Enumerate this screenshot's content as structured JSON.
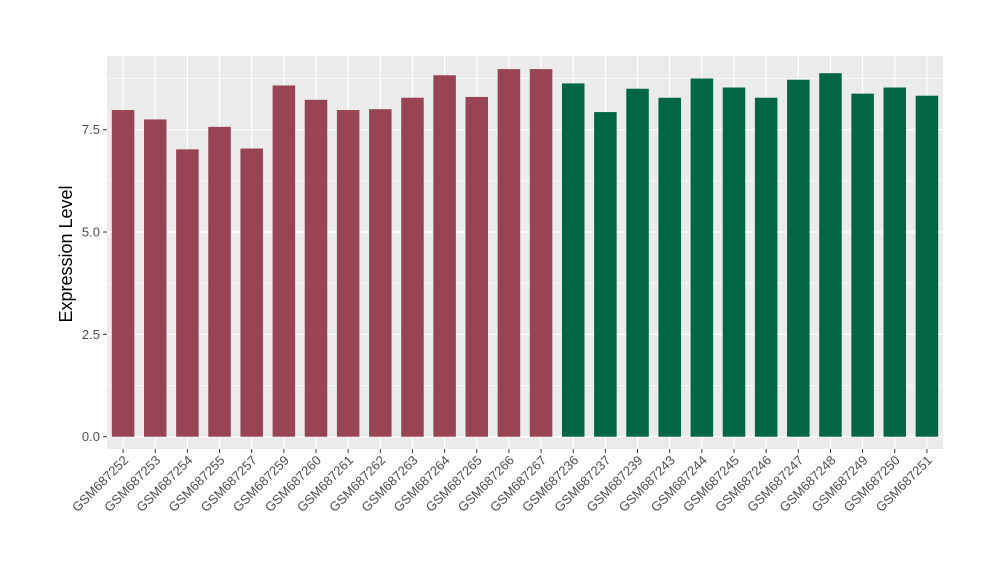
{
  "chart_data": {
    "type": "bar",
    "title": "",
    "xlabel": "",
    "ylabel": "Expression Level",
    "ylim": [
      -0.3,
      9.3
    ],
    "yticks": [
      0.0,
      2.5,
      5.0,
      7.5
    ],
    "ytick_labels": [
      "0.0",
      "2.5",
      "5.0",
      "7.5"
    ],
    "grid": true,
    "legend": "none",
    "colors": {
      "group_a": "#994455",
      "group_b": "#006644",
      "panel": "#ebebeb",
      "gridline": "#ffffff"
    },
    "categories": [
      "GSM687252",
      "GSM687253",
      "GSM687254",
      "GSM687255",
      "GSM687257",
      "GSM687259",
      "GSM687260",
      "GSM687261",
      "GSM687262",
      "GSM687263",
      "GSM687264",
      "GSM687265",
      "GSM687266",
      "GSM687267",
      "GSM687236",
      "GSM687237",
      "GSM687239",
      "GSM687243",
      "GSM687244",
      "GSM687245",
      "GSM687246",
      "GSM687247",
      "GSM687248",
      "GSM687249",
      "GSM687250",
      "GSM687251"
    ],
    "values": [
      7.98,
      7.75,
      7.02,
      7.57,
      7.04,
      8.58,
      8.23,
      7.98,
      8.0,
      8.28,
      8.83,
      8.3,
      8.98,
      8.98,
      8.63,
      7.93,
      8.5,
      8.28,
      8.75,
      8.53,
      8.28,
      8.72,
      8.88,
      8.38,
      8.53,
      8.33
    ],
    "groups": [
      "a",
      "a",
      "a",
      "a",
      "a",
      "a",
      "a",
      "a",
      "a",
      "a",
      "a",
      "a",
      "a",
      "a",
      "b",
      "b",
      "b",
      "b",
      "b",
      "b",
      "b",
      "b",
      "b",
      "b",
      "b",
      "b"
    ]
  }
}
